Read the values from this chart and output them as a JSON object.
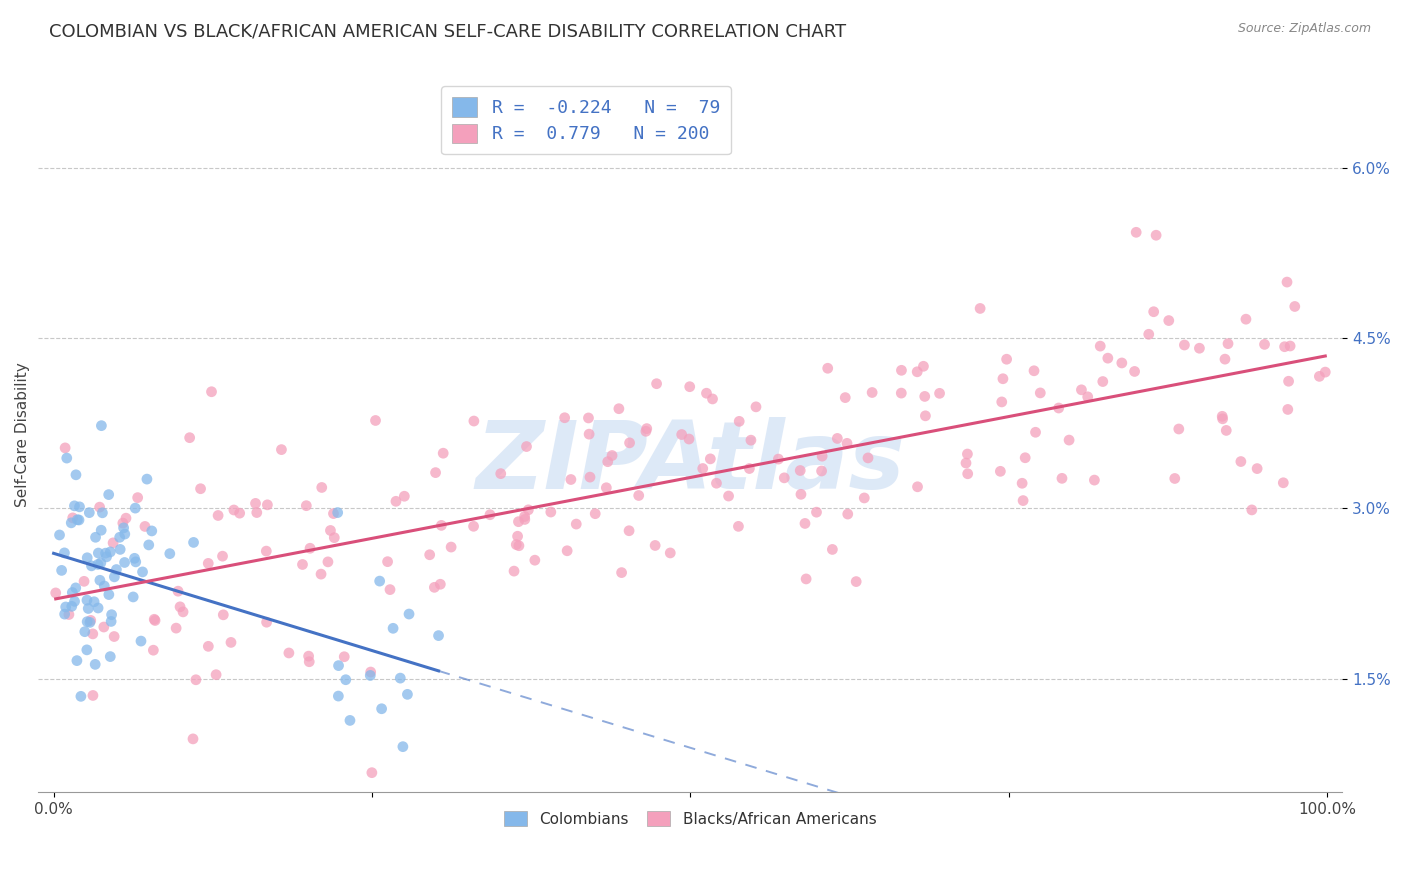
{
  "title": "COLOMBIAN VS BLACK/AFRICAN AMERICAN SELF-CARE DISABILITY CORRELATION CHART",
  "source": "Source: ZipAtlas.com",
  "ylabel": "Self-Care Disability",
  "watermark": "ZIPAtlas",
  "colombian_R": -0.224,
  "colombian_N": 79,
  "black_R": 0.779,
  "black_N": 200,
  "colombian_color": "#85B8EA",
  "black_color": "#F4A0BC",
  "colombian_line_color": "#4472C4",
  "black_line_color": "#D94F7A",
  "xmin": 0.0,
  "xmax": 1.0,
  "ymin": 0.005,
  "ymax": 0.068,
  "yticks": [
    0.015,
    0.03,
    0.045,
    0.06
  ],
  "ytick_labels": [
    "1.5%",
    "3.0%",
    "4.5%",
    "6.0%"
  ],
  "title_fontsize": 13,
  "label_fontsize": 11,
  "tick_fontsize": 11,
  "legend_fontsize": 13
}
